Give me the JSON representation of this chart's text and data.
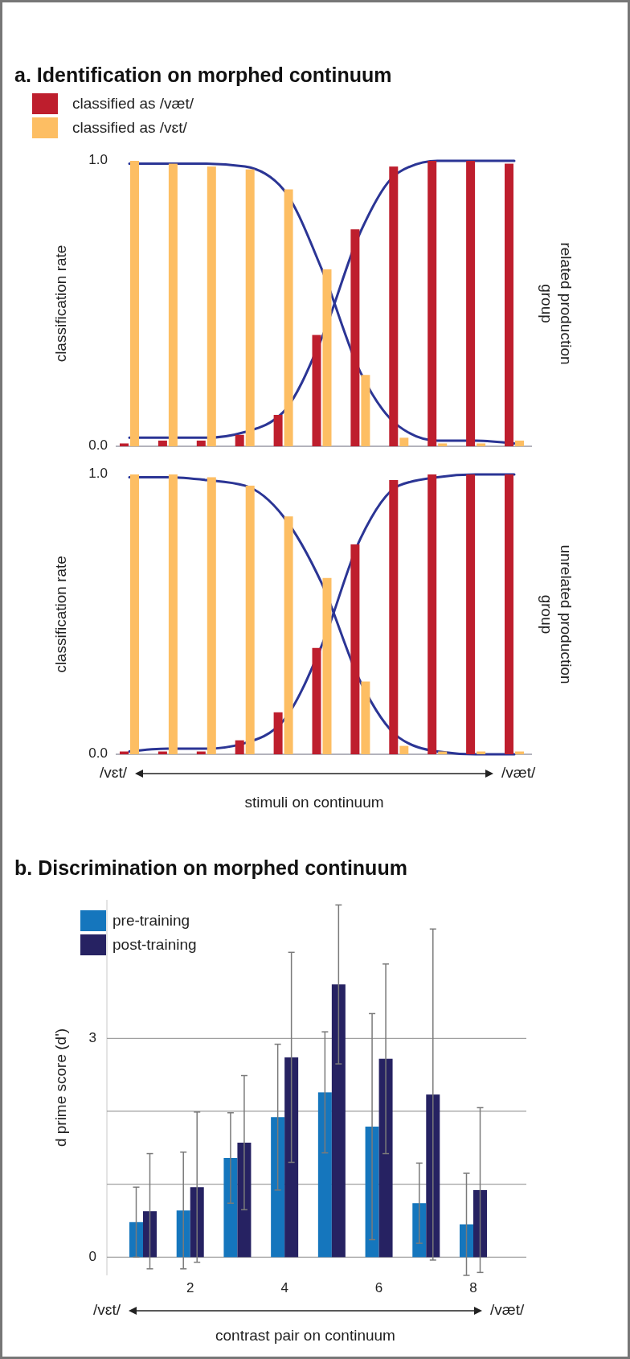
{
  "chart_data": [
    {
      "type": "bar",
      "title": "a. Identification on morphed continuum",
      "ylabel": "classification rate",
      "y2label": "related production group",
      "categories": [
        null,
        null,
        null,
        null,
        null,
        null,
        null,
        null,
        null,
        null,
        null
      ],
      "legend": "top left",
      "tick_labels": "y",
      "ylim": [
        0,
        1.0
      ],
      "yticks": [
        {
          "value": 0,
          "label": "0.0"
        },
        {
          "value": 1,
          "label": "1.0"
        }
      ],
      "series": [
        {
          "name": "classified as /væt/",
          "color": "#be1e2d",
          "values": [
            0.01,
            0.02,
            0.02,
            0.04,
            0.11,
            0.39,
            0.76,
            0.98,
            1.0,
            1.0,
            0.99
          ]
        },
        {
          "name": "classified as /vɛt/",
          "color": "#fdbe63",
          "values": [
            1.0,
            0.99,
            0.98,
            0.97,
            0.9,
            0.62,
            0.25,
            0.03,
            0.01,
            0.01,
            0.02
          ]
        },
        {
          "type": "line",
          "color": "#2b3595",
          "values": [
            0.99,
            0.99,
            0.99,
            0.98,
            0.9,
            0.62,
            0.26,
            0.07,
            0.02,
            0.02,
            0.01
          ]
        },
        {
          "type": "line",
          "color": "#2b3595",
          "values": [
            0.03,
            0.03,
            0.03,
            0.05,
            0.12,
            0.38,
            0.75,
            0.96,
            1.0,
            1.0,
            1.0
          ]
        }
      ]
    },
    {
      "type": "bar",
      "ylabel": "classification rate",
      "y2label": "unrelated production group",
      "xlabel": "stimuli on continuum",
      "annotations": [
        "/vɛt/",
        "/væt/"
      ],
      "categories": [
        null,
        null,
        null,
        null,
        null,
        null,
        null,
        null,
        null,
        null,
        null
      ],
      "tick_labels": "y",
      "ylim": [
        0,
        1.0
      ],
      "yticks": [
        {
          "value": 0,
          "label": "0.0"
        },
        {
          "value": 1,
          "label": "1.0"
        }
      ],
      "series": [
        {
          "color": "#be1e2d",
          "values": [
            0.01,
            0.01,
            0.01,
            0.05,
            0.15,
            0.38,
            0.75,
            0.98,
            1.0,
            1.0,
            1.0
          ]
        },
        {
          "color": "#fdbe63",
          "values": [
            1.0,
            1.0,
            0.99,
            0.96,
            0.85,
            0.63,
            0.26,
            0.03,
            0.01,
            0.01,
            0.01
          ]
        },
        {
          "type": "line",
          "color": "#2b3595",
          "values": [
            0.99,
            0.99,
            0.98,
            0.96,
            0.85,
            0.61,
            0.26,
            0.06,
            0.01,
            0.0,
            0.0
          ]
        },
        {
          "type": "line",
          "color": "#2b3595",
          "values": [
            0.01,
            0.02,
            0.02,
            0.04,
            0.12,
            0.39,
            0.77,
            0.96,
            0.99,
            1.0,
            1.0
          ]
        }
      ]
    },
    {
      "type": "bar",
      "title": "b. Discrimination on morphed continuum",
      "ylabel": "d prime score (d')",
      "xlabel": "contrast pair on continuum",
      "annotations": [
        "/vɛt/",
        "/væt/"
      ],
      "categories": [
        null,
        "2",
        null,
        "4",
        null,
        "6",
        null,
        "8"
      ],
      "legend": "top left",
      "grid": "y",
      "ylim": [
        -0.25,
        4.9
      ],
      "yticks": [
        0,
        {
          "value": 1,
          "label": null
        },
        {
          "value": 2,
          "label": null
        },
        3
      ],
      "series": [
        {
          "name": "pre-training",
          "color": "#1576bd",
          "values": [
            0.48,
            0.64,
            1.36,
            1.92,
            2.26,
            1.79,
            0.74,
            0.45
          ],
          "errors": [
            0.48,
            0.8,
            0.62,
            1.0,
            0.83,
            1.55,
            0.55,
            0.7
          ]
        },
        {
          "name": "post-training",
          "color": "#262262",
          "values": [
            0.63,
            0.96,
            1.57,
            2.74,
            3.74,
            2.72,
            2.23,
            0.92
          ],
          "errors": [
            0.79,
            1.03,
            0.92,
            1.44,
            1.09,
            1.3,
            2.27,
            1.13
          ]
        }
      ]
    }
  ]
}
